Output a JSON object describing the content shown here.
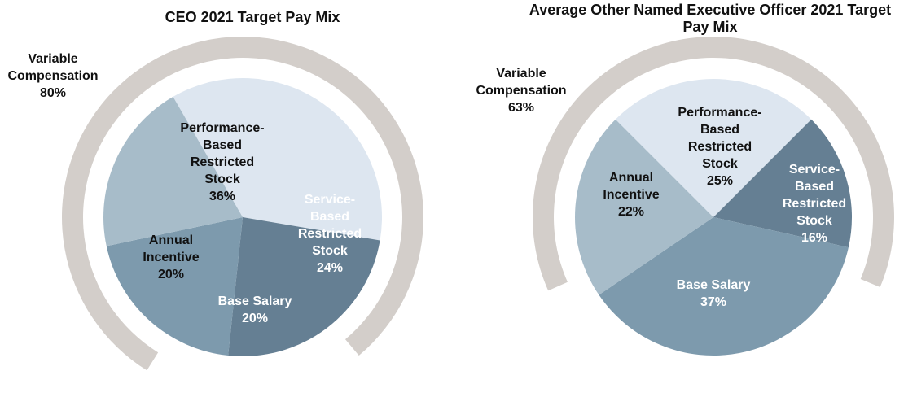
{
  "chart_data": [
    {
      "type": "pie",
      "title_lines": [
        "CEO 2021 Target Pay Mix"
      ],
      "slices": [
        {
          "name_lines": [
            "Performance-",
            "Based",
            "Restricted",
            "Stock"
          ],
          "value": 36,
          "value_label": "36%",
          "color": "#dde6f0",
          "text_color": "#111111"
        },
        {
          "name_lines": [
            "Service-",
            "Based",
            "Restricted",
            "Stock"
          ],
          "value": 24,
          "value_label": "24%",
          "color": "#657f93",
          "text_color": "#ffffff"
        },
        {
          "name_lines": [
            "Base Salary"
          ],
          "value": 20,
          "value_label": "20%",
          "color": "#7d9aad",
          "text_color": "#ffffff"
        },
        {
          "name_lines": [
            "Annual",
            "Incentive"
          ],
          "value": 20,
          "value_label": "20%",
          "color": "#a7bcc9",
          "text_color": "#111111"
        }
      ],
      "ring": {
        "label_lines": [
          "Variable",
          "Compensation"
        ],
        "value": 80,
        "value_label": "80%",
        "color": "#d3ceca"
      }
    },
    {
      "type": "pie",
      "title_lines": [
        "Average Other Named Executive Officer 2021 Target",
        "Pay Mix"
      ],
      "slices": [
        {
          "name_lines": [
            "Performance-",
            "Based",
            "Restricted",
            "Stock"
          ],
          "value": 25,
          "value_label": "25%",
          "color": "#dde6f0",
          "text_color": "#111111"
        },
        {
          "name_lines": [
            "Service-",
            "Based",
            "Restricted",
            "Stock"
          ],
          "value": 16,
          "value_label": "16%",
          "color": "#657f93",
          "text_color": "#ffffff"
        },
        {
          "name_lines": [
            "Base Salary"
          ],
          "value": 37,
          "value_label": "37%",
          "color": "#7d9aad",
          "text_color": "#ffffff"
        },
        {
          "name_lines": [
            "Annual",
            "Incentive"
          ],
          "value": 22,
          "value_label": "22%",
          "color": "#a7bcc9",
          "text_color": "#111111"
        }
      ],
      "ring": {
        "label_lines": [
          "Variable",
          "Compensation"
        ],
        "value": 63,
        "value_label": "63%",
        "color": "#d3ceca"
      }
    }
  ]
}
